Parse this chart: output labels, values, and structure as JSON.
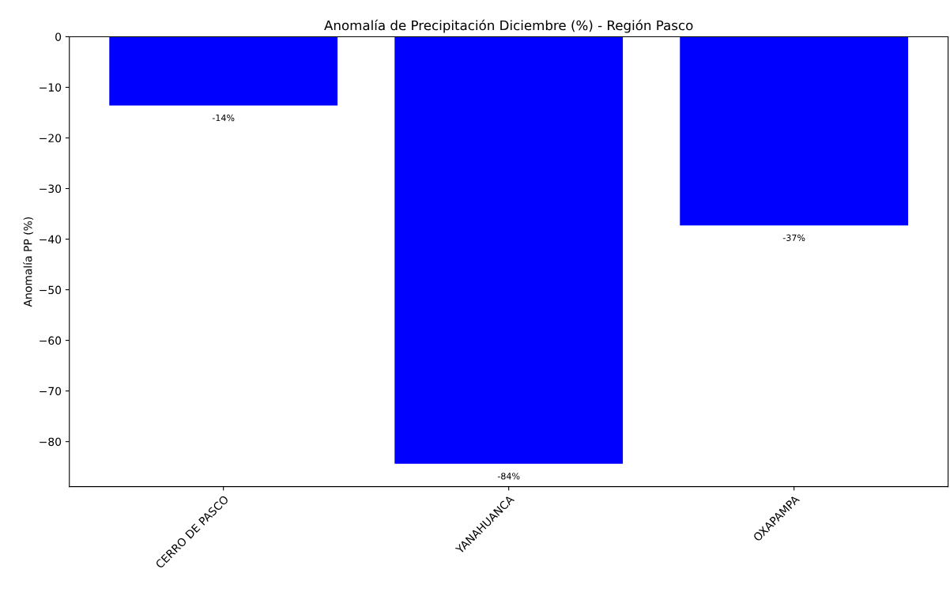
{
  "chart_data": {
    "type": "bar",
    "title": "Anomalía de Precipitación Diciembre (%) - Región Pasco",
    "ylabel": "Anomalía PP (%)",
    "categories": [
      "CERRO DE PASCO",
      "YANAHUANCA",
      "OXAPAMPA"
    ],
    "values": [
      -13.6,
      -84.4,
      -37.3
    ],
    "value_labels": [
      "-14%",
      "-84%",
      "-37%"
    ],
    "color": "#0000ff",
    "ylim": [
      -88.9,
      0
    ],
    "yticks": [
      -80,
      -70,
      -60,
      -50,
      -40,
      -30,
      -20,
      -10,
      0
    ],
    "grid": false
  }
}
